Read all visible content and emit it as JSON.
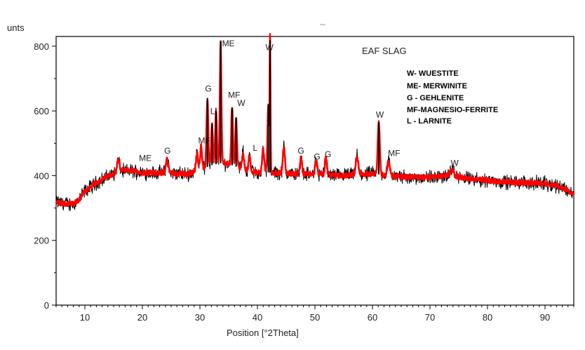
{
  "chart_data": {
    "type": "line",
    "title": "EAF SLAG",
    "xlabel": "Position [°2Theta]",
    "ylabel": "unts",
    "xlim": [
      5,
      95
    ],
    "ylim": [
      0,
      830
    ],
    "x_ticks": [
      10,
      20,
      30,
      40,
      50,
      60,
      70,
      80,
      90
    ],
    "y_ticks": [
      0,
      200,
      400,
      600,
      800
    ],
    "grid": false,
    "colors": {
      "raw": "#000000",
      "fitted": "#ff0000"
    },
    "baseline": [
      [
        5,
        318
      ],
      [
        6,
        315
      ],
      [
        8,
        312
      ],
      [
        9,
        325
      ],
      [
        10,
        352
      ],
      [
        12,
        378
      ],
      [
        14,
        398
      ],
      [
        16,
        415
      ],
      [
        18,
        415
      ],
      [
        20,
        410
      ],
      [
        22,
        408
      ],
      [
        24,
        410
      ],
      [
        26,
        406
      ],
      [
        28,
        405
      ],
      [
        30,
        418
      ],
      [
        32,
        432
      ],
      [
        34,
        440
      ],
      [
        36,
        430
      ],
      [
        38,
        415
      ],
      [
        40,
        410
      ],
      [
        42,
        410
      ],
      [
        44,
        408
      ],
      [
        46,
        406
      ],
      [
        48,
        404
      ],
      [
        50,
        405
      ],
      [
        52,
        402
      ],
      [
        54,
        400
      ],
      [
        56,
        402
      ],
      [
        58,
        404
      ],
      [
        60,
        406
      ],
      [
        62,
        402
      ],
      [
        64,
        398
      ],
      [
        66,
        396
      ],
      [
        68,
        394
      ],
      [
        70,
        395
      ],
      [
        72,
        398
      ],
      [
        74,
        400
      ],
      [
        76,
        392
      ],
      [
        78,
        388
      ],
      [
        80,
        386
      ],
      [
        82,
        382
      ],
      [
        84,
        380
      ],
      [
        86,
        378
      ],
      [
        88,
        377
      ],
      [
        90,
        376
      ],
      [
        92,
        370
      ],
      [
        93,
        364
      ],
      [
        94,
        354
      ],
      [
        95,
        340
      ]
    ],
    "peaks": [
      {
        "x": 15.8,
        "y": 450,
        "w": 0.3
      },
      {
        "x": 24.3,
        "y": 450,
        "w": 0.3
      },
      {
        "x": 29.5,
        "y": 470,
        "w": 0.25
      },
      {
        "x": 30.2,
        "y": 490,
        "w": 0.25
      },
      {
        "x": 31.3,
        "y": 640,
        "w": 0.2
      },
      {
        "x": 32.1,
        "y": 560,
        "w": 0.2
      },
      {
        "x": 32.8,
        "y": 600,
        "w": 0.2
      },
      {
        "x": 33.6,
        "y": 815,
        "w": 0.18
      },
      {
        "x": 35.6,
        "y": 610,
        "w": 0.2
      },
      {
        "x": 36.3,
        "y": 580,
        "w": 0.2
      },
      {
        "x": 37.5,
        "y": 470,
        "w": 0.25
      },
      {
        "x": 38.6,
        "y": 460,
        "w": 0.25
      },
      {
        "x": 41.0,
        "y": 480,
        "w": 0.25
      },
      {
        "x": 41.9,
        "y": 620,
        "w": 0.2
      },
      {
        "x": 42.2,
        "y": 818,
        "w": 0.1
      },
      {
        "x": 44.6,
        "y": 490,
        "w": 0.25
      },
      {
        "x": 47.6,
        "y": 455,
        "w": 0.25
      },
      {
        "x": 50.2,
        "y": 450,
        "w": 0.25
      },
      {
        "x": 51.9,
        "y": 455,
        "w": 0.25
      },
      {
        "x": 57.3,
        "y": 460,
        "w": 0.3
      },
      {
        "x": 61.1,
        "y": 565,
        "w": 0.25
      },
      {
        "x": 62.8,
        "y": 445,
        "w": 0.3
      },
      {
        "x": 73.8,
        "y": 420,
        "w": 0.4
      }
    ],
    "annotations": [
      {
        "label": "ME",
        "x": 33.85,
        "y": 800
      },
      {
        "label": "W",
        "x": 41.4,
        "y": 788
      },
      {
        "label": "G",
        "x": 30.9,
        "y": 660
      },
      {
        "label": "MF",
        "x": 34.9,
        "y": 640
      },
      {
        "label": "W",
        "x": 36.5,
        "y": 615
      },
      {
        "label": "L",
        "x": 31.8,
        "y": 590
      },
      {
        "label": "MF",
        "x": 29.7,
        "y": 500
      },
      {
        "label": "ME",
        "x": 19.4,
        "y": 445
      },
      {
        "label": "G",
        "x": 23.8,
        "y": 468
      },
      {
        "label": "L",
        "x": 39.2,
        "y": 477
      },
      {
        "label": "G",
        "x": 47.0,
        "y": 468
      },
      {
        "label": "G",
        "x": 49.8,
        "y": 450
      },
      {
        "label": "G",
        "x": 51.7,
        "y": 457
      },
      {
        "label": "W",
        "x": 60.6,
        "y": 580
      },
      {
        "label": "MF",
        "x": 62.7,
        "y": 460
      },
      {
        "label": "W",
        "x": 73.6,
        "y": 430
      }
    ],
    "legend": {
      "title": "EAF SLAG",
      "entries": [
        "W- WUESTITE",
        "ME- MERWINITE",
        "G  - GEHLENITE",
        "MF-MAGNESIO-FERRITE",
        "L  - LARNITE"
      ]
    }
  }
}
